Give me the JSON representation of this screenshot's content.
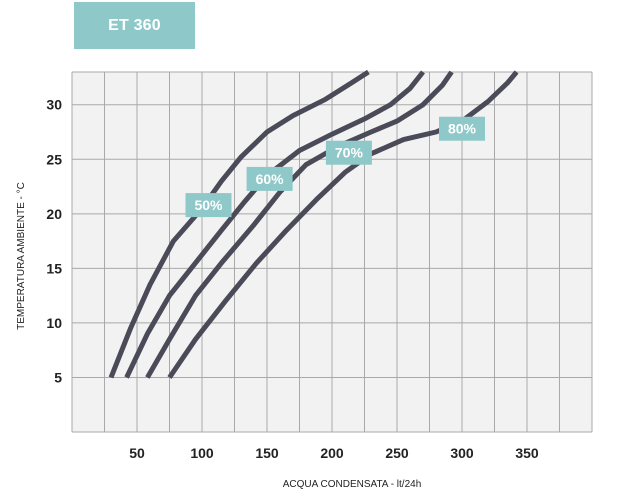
{
  "title": "ET 360",
  "chart_data": {
    "type": "line",
    "title": "ET 360",
    "xlabel": "ACQUA CONDENSATA - lt/24h",
    "ylabel": "TEMPERATURA AMBIENTE - °C",
    "xlim": [
      0,
      400
    ],
    "ylim": [
      0,
      33
    ],
    "x_ticks": [
      50,
      100,
      150,
      200,
      250,
      300,
      350
    ],
    "y_ticks": [
      5,
      10,
      15,
      20,
      25,
      30
    ],
    "grid": true,
    "series": [
      {
        "name": "50%",
        "points": [
          [
            30,
            5
          ],
          [
            45,
            9.5
          ],
          [
            60,
            13.5
          ],
          [
            78,
            17.5
          ],
          [
            100,
            20.5
          ],
          [
            115,
            23
          ],
          [
            130,
            25.2
          ],
          [
            150,
            27.5
          ],
          [
            170,
            29
          ],
          [
            195,
            30.5
          ],
          [
            215,
            32
          ],
          [
            228,
            33
          ]
        ]
      },
      {
        "name": "60%",
        "points": [
          [
            42,
            5
          ],
          [
            58,
            9
          ],
          [
            75,
            12.5
          ],
          [
            95,
            15.5
          ],
          [
            115,
            18.5
          ],
          [
            132,
            21
          ],
          [
            150,
            23.5
          ],
          [
            175,
            25.8
          ],
          [
            200,
            27.3
          ],
          [
            225,
            28.7
          ],
          [
            245,
            30
          ],
          [
            260,
            31.5
          ],
          [
            270,
            33
          ]
        ]
      },
      {
        "name": "70%",
        "points": [
          [
            58,
            5
          ],
          [
            75,
            8.5
          ],
          [
            95,
            12.5
          ],
          [
            115,
            15.5
          ],
          [
            140,
            19
          ],
          [
            160,
            22
          ],
          [
            180,
            24.5
          ],
          [
            205,
            26.2
          ],
          [
            230,
            27.5
          ],
          [
            250,
            28.5
          ],
          [
            270,
            30
          ],
          [
            285,
            31.8
          ],
          [
            292,
            33
          ]
        ]
      },
      {
        "name": "80%",
        "points": [
          [
            75,
            5
          ],
          [
            95,
            8.5
          ],
          [
            118,
            12
          ],
          [
            142,
            15.5
          ],
          [
            165,
            18.5
          ],
          [
            188,
            21.3
          ],
          [
            210,
            23.8
          ],
          [
            230,
            25.5
          ],
          [
            255,
            26.8
          ],
          [
            280,
            27.5
          ],
          [
            300,
            28.5
          ],
          [
            320,
            30.3
          ],
          [
            335,
            32
          ],
          [
            342,
            33
          ]
        ]
      }
    ]
  }
}
